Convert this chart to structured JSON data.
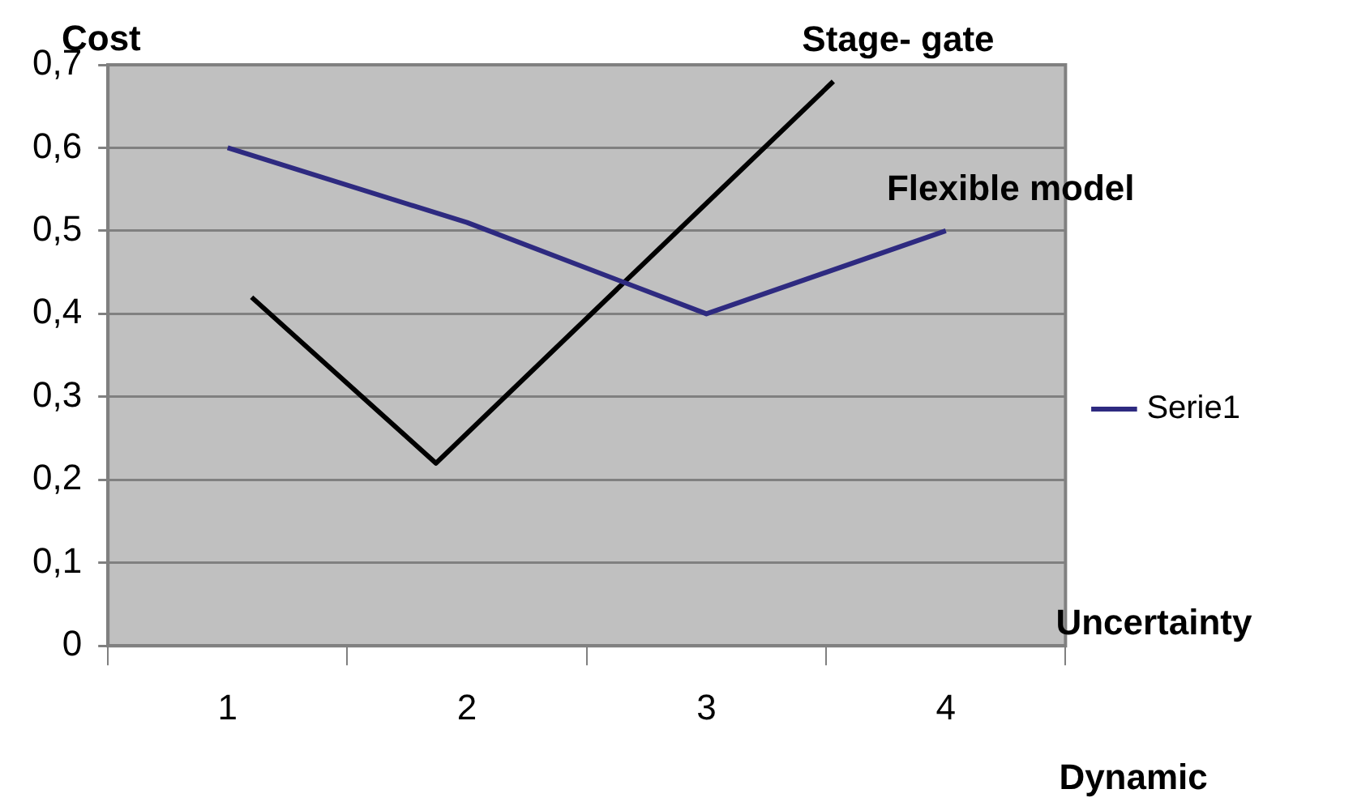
{
  "chart_data": {
    "type": "line",
    "ylabel": "Cost",
    "xlabel": "Uncertainty",
    "annotations": [
      {
        "text": "Stage- gate",
        "x": 3.53,
        "y": 0.68
      },
      {
        "text": "Flexible model",
        "x": 4,
        "y": 0.5
      },
      "Dynamic"
    ],
    "xlim": [
      0.5,
      4.5
    ],
    "xticks": [
      {
        "value": 0.5,
        "label": null
      },
      1,
      {
        "value": 1.5,
        "label": null
      },
      2,
      {
        "value": 2.5,
        "label": null
      },
      3,
      {
        "value": 3.5,
        "label": null
      },
      4,
      {
        "value": 4.5,
        "label": null
      }
    ],
    "ylim": [
      0,
      0.7
    ],
    "yticks": [
      0,
      {
        "value": 0.1,
        "label": "0,1"
      },
      {
        "value": 0.2,
        "label": "0,2"
      },
      {
        "value": 0.3,
        "label": "0,3"
      },
      {
        "value": 0.4,
        "label": "0,4"
      },
      {
        "value": 0.5,
        "label": "0,5"
      },
      {
        "value": 0.6,
        "label": "0,6"
      },
      {
        "value": 0.7,
        "label": "0,7"
      }
    ],
    "grid": "y",
    "legend": "right",
    "marker": "none",
    "line_style": "solid",
    "series": [
      {
        "name": "Serie1",
        "color": "#2e2a80",
        "x": [
          1,
          2,
          3,
          4
        ],
        "values": [
          0.6,
          0.51,
          0.4,
          0.5
        ]
      },
      {
        "color": "#000000",
        "x": [
          1.1,
          1.87,
          3.53
        ],
        "values": [
          0.42,
          0.22,
          0.68
        ]
      }
    ]
  }
}
